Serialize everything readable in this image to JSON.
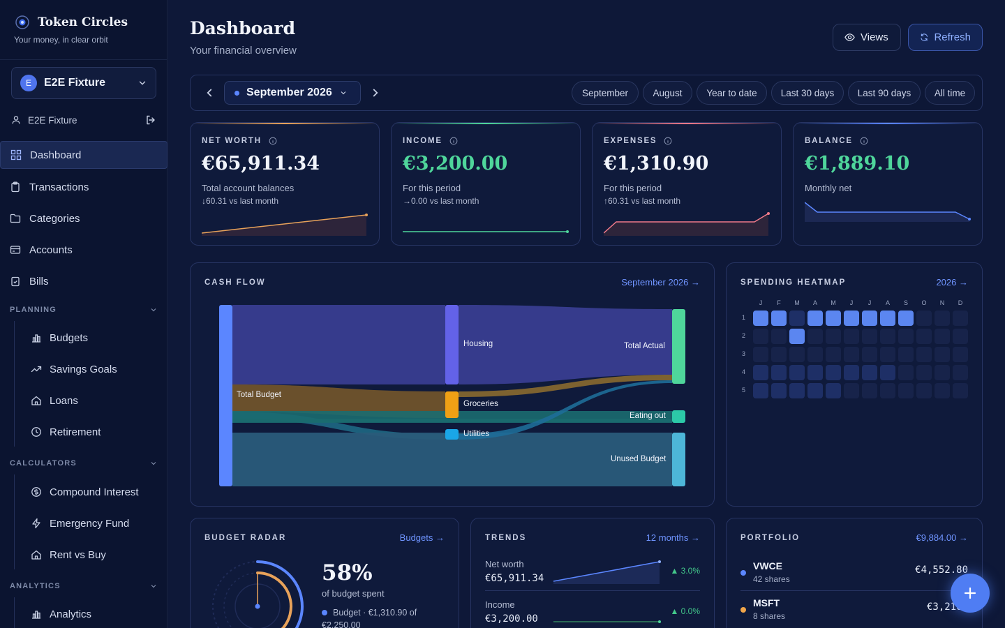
{
  "brand": {
    "title": "Token Circles",
    "subtitle": "Your money, in clear orbit"
  },
  "workspace": {
    "initial": "E",
    "name": "E2E Fixture"
  },
  "user": {
    "name": "E2E Fixture"
  },
  "nav": {
    "dashboard": "Dashboard",
    "transactions": "Transactions",
    "categories": "Categories",
    "accounts": "Accounts",
    "bills": "Bills",
    "planning": {
      "label": "PLANNING",
      "items": [
        "Budgets",
        "Savings Goals",
        "Loans",
        "Retirement"
      ]
    },
    "calculators": {
      "label": "CALCULATORS",
      "items": [
        "Compound Interest",
        "Emergency Fund",
        "Rent vs Buy"
      ]
    },
    "analytics": {
      "label": "ANALYTICS",
      "items": [
        "Analytics"
      ]
    }
  },
  "header": {
    "title": "Dashboard",
    "subtitle": "Your financial overview",
    "views_label": "Views",
    "refresh_label": "Refresh"
  },
  "period": {
    "selected": "September 2026",
    "chips": [
      "September",
      "August",
      "Year to date",
      "Last 30 days",
      "Last 90 days",
      "All time"
    ]
  },
  "stats": [
    {
      "label": "NET WORTH",
      "value": "€65,911.34",
      "desc": "Total account balances",
      "delta": "↓60.31 vs last month",
      "color": "#f1f4fb",
      "accent": "#e8a25a"
    },
    {
      "label": "INCOME",
      "value": "€3,200.00",
      "desc": "For this period",
      "delta": "→0.00 vs last month",
      "color": "#4fd69b",
      "accent": "#4fd69b"
    },
    {
      "label": "EXPENSES",
      "value": "€1,310.90",
      "desc": "For this period",
      "delta": "↑60.31 vs last month",
      "color": "#f1f4fb",
      "accent": "#f07a8a"
    },
    {
      "label": "BALANCE",
      "value": "€1,889.10",
      "desc": "Monthly net",
      "delta": "",
      "color": "#4fd69b",
      "accent": "#5b86ff"
    }
  ],
  "cashflow": {
    "title": "CASH FLOW",
    "link": "September 2026 →",
    "labels": {
      "total_budget": "Total Budget",
      "housing": "Housing",
      "groceries": "Groceries",
      "utilities": "Utilities",
      "total_actual": "Total Actual",
      "eating_out": "Eating out",
      "unused_budget": "Unused Budget"
    }
  },
  "heatmap": {
    "title": "SPENDING HEATMAP",
    "link": "2026 →",
    "months": [
      "J",
      "F",
      "M",
      "A",
      "M",
      "J",
      "J",
      "A",
      "S",
      "O",
      "N",
      "D"
    ],
    "rows": [
      "1",
      "2",
      "3",
      "4",
      "5"
    ],
    "levels": [
      [
        3,
        3,
        1,
        3,
        3,
        3,
        3,
        3,
        3,
        0,
        0,
        0
      ],
      [
        0,
        0,
        3,
        0,
        0,
        0,
        0,
        0,
        0,
        0,
        0,
        0
      ],
      [
        0,
        0,
        0,
        0,
        0,
        0,
        0,
        0,
        0,
        0,
        0,
        0
      ],
      [
        1,
        1,
        1,
        1,
        1,
        1,
        1,
        1,
        0,
        0,
        0,
        0
      ],
      [
        1,
        1,
        1,
        1,
        1,
        0,
        0,
        0,
        0,
        0,
        0,
        0
      ]
    ]
  },
  "radar": {
    "title": "BUDGET RADAR",
    "link": "Budgets →",
    "percent": "58%",
    "percent_value": 0.58,
    "caption": "of budget spent",
    "legend": "Budget · €1,310.90 of",
    "legend2": "€2,250.00"
  },
  "trends": {
    "title": "TRENDS",
    "link": "12 months →",
    "rows": [
      {
        "label": "Net worth",
        "value": "€65,911.34",
        "change": "▲ 3.0%"
      },
      {
        "label": "Income",
        "value": "€3,200.00",
        "change": "▲ 0.0%"
      }
    ]
  },
  "portfolio": {
    "title": "PORTFOLIO",
    "total": "€9,884.00 →",
    "holdings": [
      {
        "name": "VWCE",
        "shares": "42 shares",
        "value": "€4,552.80",
        "color": "#5b86ff"
      },
      {
        "name": "MSFT",
        "shares": "8 shares",
        "value": "€3,216.",
        "color": "#f0a54a"
      }
    ]
  },
  "fab": {
    "icon": "plus-icon"
  }
}
